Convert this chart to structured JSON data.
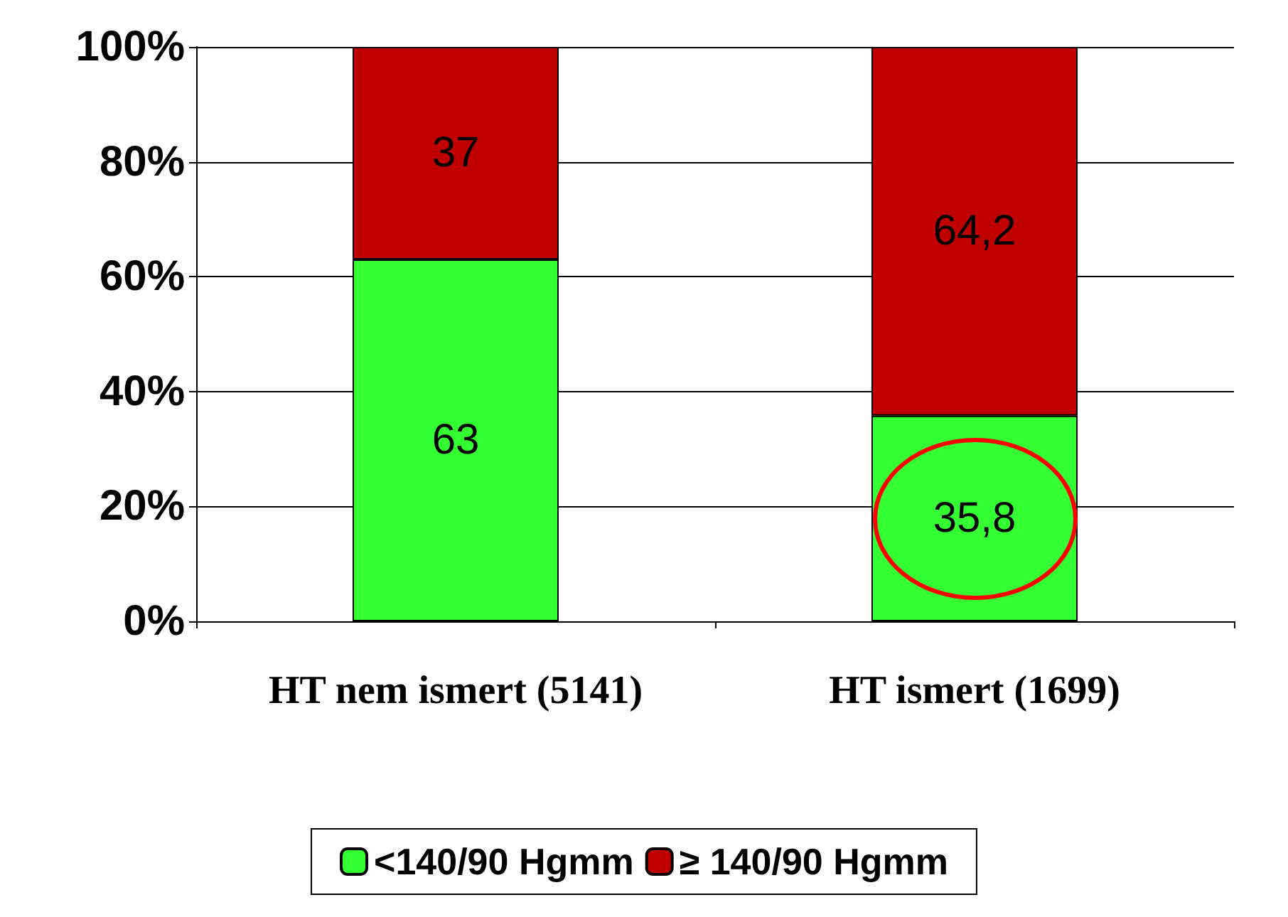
{
  "chart_data": {
    "type": "bar",
    "stacked": true,
    "categories": [
      "HT nem ismert (5141)",
      "HT ismert (1699)"
    ],
    "series": [
      {
        "name": "<140/90 Hgmm",
        "color": "#33ff33",
        "values": [
          63,
          35.8
        ],
        "value_labels": [
          "63",
          "35,8"
        ]
      },
      {
        "name": "≥ 140/90 Hgmm",
        "color": "#c00000",
        "values": [
          37,
          64.2
        ],
        "value_labels": [
          "37",
          "64,2"
        ]
      }
    ],
    "ylim": [
      0,
      100
    ],
    "yticks": [
      {
        "value": 0,
        "label": "0%"
      },
      {
        "value": 20,
        "label": "20%"
      },
      {
        "value": 40,
        "label": "40%"
      },
      {
        "value": 60,
        "label": "60%"
      },
      {
        "value": 80,
        "label": "80%"
      },
      {
        "value": 100,
        "label": "100%"
      }
    ],
    "grid": "y",
    "legend": "bottom"
  }
}
